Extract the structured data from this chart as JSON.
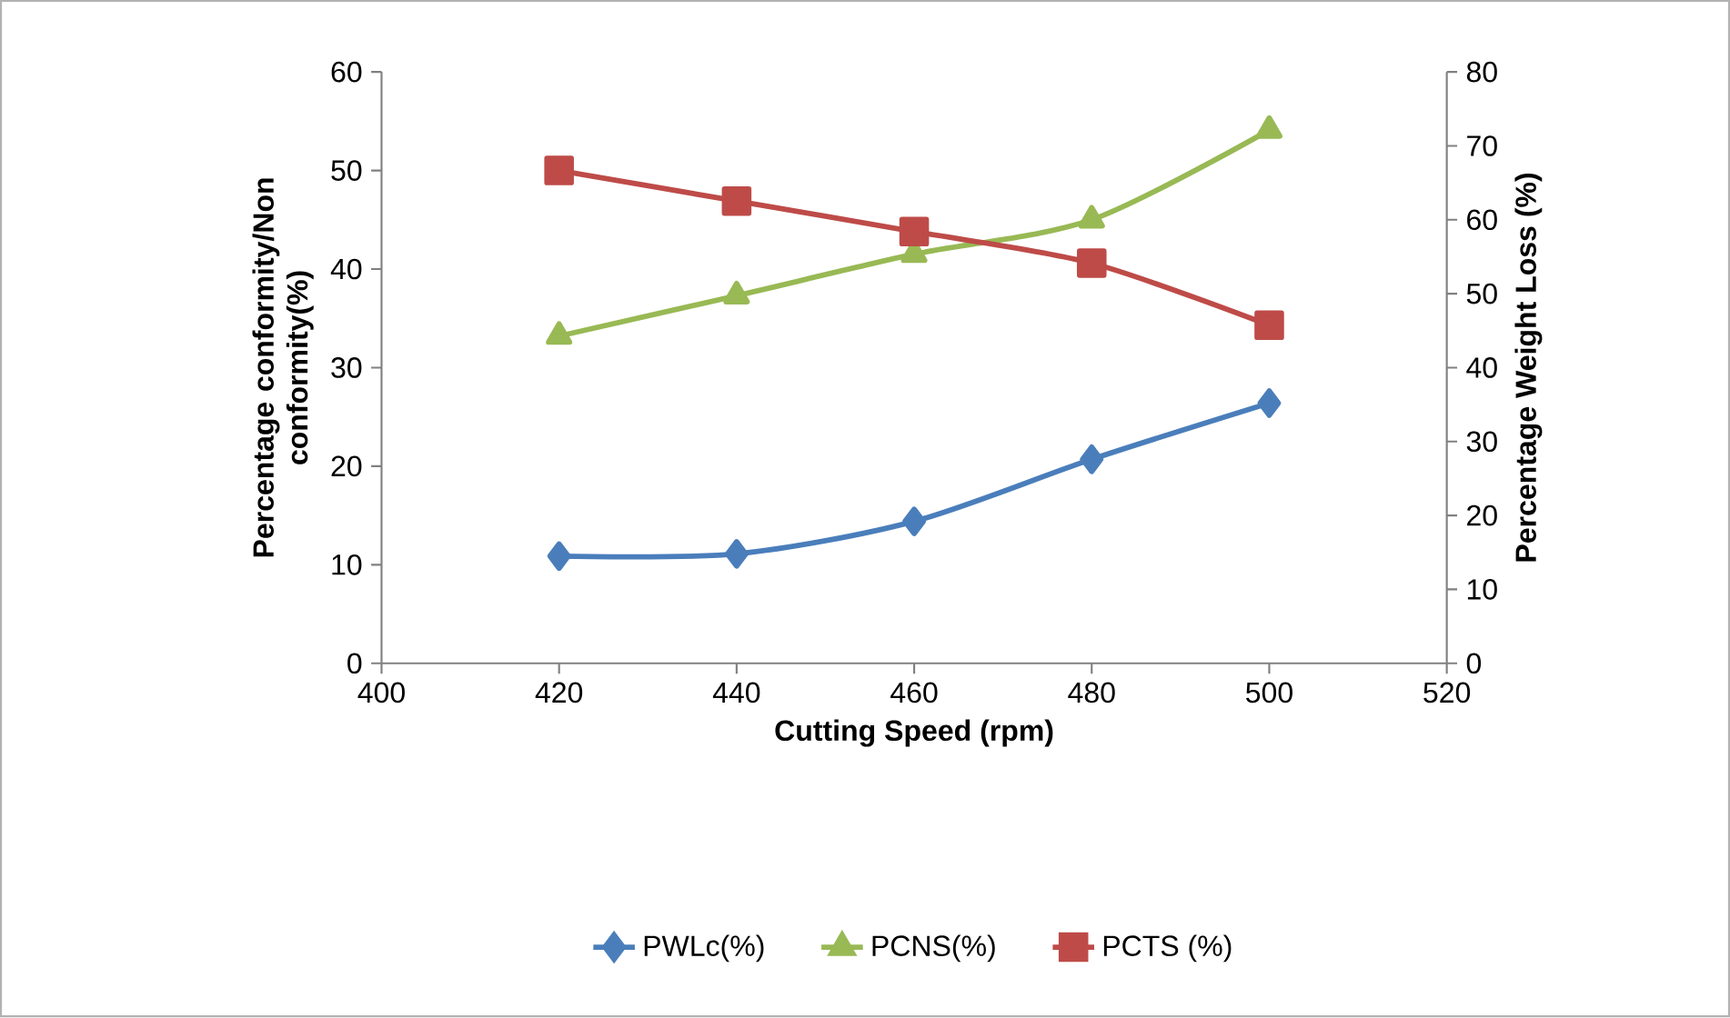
{
  "chart_data": {
    "type": "line",
    "xlabel": "Cutting Speed (rpm)",
    "ylabel": "Percentage conformity/Non conformity(%)",
    "y2label": "Percentage Weight Loss (%)",
    "x": [
      420,
      440,
      460,
      480,
      500
    ],
    "series": [
      {
        "name": "PWLc(%)",
        "color": "#4a7ebb",
        "marker": "diamond",
        "axis": "y2",
        "values": [
          14.5,
          14.8,
          19.2,
          27.6,
          35.2
        ]
      },
      {
        "name": "PCNS(%)",
        "color": "#98b954",
        "marker": "triangle",
        "values": [
          33.2,
          37.3,
          41.5,
          45.0,
          54.1
        ]
      },
      {
        "name": "PCTS (%)",
        "color": "#be4b48",
        "marker": "square",
        "values": [
          50.0,
          46.9,
          43.8,
          40.6,
          34.3
        ]
      }
    ],
    "xlim": [
      400,
      520
    ],
    "xticks": [
      400,
      420,
      440,
      460,
      480,
      500,
      520
    ],
    "ylim": [
      0,
      60
    ],
    "yticks": [
      0,
      10,
      20,
      30,
      40,
      50,
      60
    ],
    "y2lim": [
      0,
      80
    ],
    "y2ticks": [
      0,
      10,
      20,
      30,
      40,
      50,
      60,
      70,
      80
    ],
    "legend": "bottom",
    "grid": false
  }
}
